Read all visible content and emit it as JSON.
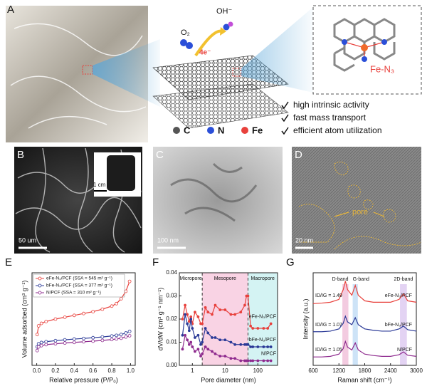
{
  "panel_a": {
    "label": "A",
    "o2": "O₂",
    "oh": "OH⁻",
    "electrons": "4e⁻",
    "site": "Fe-N₃",
    "features": [
      "high intrinsic activity",
      "fast mass transport",
      "efficient atom utilization"
    ],
    "elements": [
      "C",
      "N",
      "Fe"
    ]
  },
  "panel_b": {
    "label": "B",
    "scale": "50 um",
    "inset_scale": "1 cm"
  },
  "panel_c": {
    "label": "C",
    "scale": "100 nm"
  },
  "panel_d": {
    "label": "D",
    "scale": "20 nm",
    "annotation": "pore"
  },
  "chart_data": [
    {
      "type": "line",
      "label": "E",
      "x_label": "Relative pressure (P/P₀)",
      "y_label": "Volume adsorbed (cm³ g⁻¹)",
      "markers": "open",
      "legend": "upper left",
      "x": [
        0.005,
        0.02,
        0.05,
        0.1,
        0.2,
        0.3,
        0.4,
        0.5,
        0.6,
        0.7,
        0.8,
        0.85,
        0.9,
        0.95,
        0.99
      ],
      "xlim": [
        -0.05,
        1.05
      ],
      "xticks": [
        {
          "value": 0,
          "label": "0.0"
        },
        {
          "value": 0.2,
          "label": "0.2"
        },
        {
          "value": 0.4,
          "label": "0.4"
        },
        {
          "value": 0.6,
          "label": "0.6"
        },
        {
          "value": 0.8,
          "label": "0.8"
        },
        {
          "value": 1,
          "label": "1.0"
        }
      ],
      "ylim": [
        0,
        750
      ],
      "series": [
        {
          "name": "eFe-N₃/PCF (SSA = 545 m² g⁻¹)",
          "color": "#e8413c",
          "values": [
            250,
            320,
            340,
            355,
            375,
            390,
            405,
            420,
            435,
            455,
            480,
            500,
            540,
            600,
            680
          ]
        },
        {
          "name": "bFe-N₃/PCF (SSA = 377 m² g⁻¹)",
          "color": "#2b3a97",
          "values": [
            150,
            175,
            185,
            192,
            200,
            207,
            213,
            218,
            224,
            230,
            238,
            243,
            250,
            262,
            275
          ]
        },
        {
          "name": "N/PCF (SSA = 310 m² g⁻¹)",
          "color": "#8e2a8e",
          "values": [
            120,
            150,
            160,
            168,
            175,
            181,
            186,
            191,
            196,
            202,
            209,
            214,
            220,
            230,
            240
          ]
        }
      ]
    },
    {
      "type": "line",
      "label": "F",
      "x_label": "Pore diameter (nm)",
      "y_label": "dV/dW (cm³ g⁻¹ nm⁻¹)",
      "markers": "filled",
      "log_x": true,
      "x": [
        0.5,
        0.6,
        0.7,
        0.8,
        0.9,
        1.0,
        1.2,
        1.5,
        1.8,
        2.0,
        2.5,
        3,
        4,
        5,
        7,
        10,
        15,
        20,
        30,
        40,
        45,
        50,
        60,
        70,
        100,
        150,
        200,
        250
      ],
      "xlim": [
        0.4,
        400
      ],
      "xticks": [
        1,
        10,
        100
      ],
      "ylim": [
        0,
        0.04
      ],
      "yticks": [
        {
          "value": 0,
          "label": "0.00"
        },
        {
          "value": 0.01,
          "label": "0.01"
        },
        {
          "value": 0.02,
          "label": "0.02"
        },
        {
          "value": 0.03,
          "label": "0.03"
        },
        {
          "value": 0.04,
          "label": "0.04"
        }
      ],
      "regions": [
        {
          "label": "Micropore",
          "range": [
            0.4,
            2
          ],
          "color": "#ffffff"
        },
        {
          "label": "Mesopore",
          "range": [
            2,
            50
          ],
          "color": "#f9d3e4"
        },
        {
          "label": "Macropore",
          "range": [
            50,
            400
          ],
          "color": "#d4f3f3"
        }
      ],
      "series": [
        {
          "name": "eFe-N₃/PCF",
          "color": "#e8413c",
          "values": [
            0.02,
            0.026,
            0.022,
            0.019,
            0.021,
            0.018,
            0.023,
            0.021,
            0.018,
            0.018,
            0.025,
            0.023,
            0.022,
            0.026,
            0.024,
            0.024,
            0.022,
            0.022,
            0.023,
            0.026,
            0.03,
            0.03,
            0.017,
            0.016,
            0.016,
            0.016,
            0.016,
            0.018
          ]
        },
        {
          "name": "bFe-N₃/PCF",
          "color": "#2b3a97",
          "values": [
            0.013,
            0.022,
            0.018,
            0.015,
            0.02,
            0.016,
            0.012,
            0.013,
            0.009,
            0.01,
            0.016,
            0.014,
            0.012,
            0.012,
            0.011,
            0.011,
            0.01,
            0.009,
            0.009,
            0.009,
            0.009,
            0.009,
            0.008,
            0.008,
            0.008,
            0.008,
            0.008,
            0.008
          ]
        },
        {
          "name": "N/PCF",
          "color": "#8e2a8e",
          "values": [
            0.007,
            0.013,
            0.011,
            0.009,
            0.01,
            0.008,
            0.006,
            0.007,
            0.004,
            0.005,
            0.008,
            0.007,
            0.006,
            0.005,
            0.004,
            0.004,
            0.003,
            0.003,
            0.002,
            0.002,
            0.002,
            0.002,
            0.002,
            0.002,
            0.002,
            0.002,
            0.002,
            0.002
          ]
        }
      ]
    },
    {
      "type": "line",
      "label": "G",
      "x_label": "Raman shift (cm⁻¹)",
      "y_label": "Intensity (a.u.)",
      "markers": "none",
      "x": [
        600,
        800,
        1000,
        1200,
        1300,
        1350,
        1400,
        1500,
        1580,
        1650,
        1800,
        2000,
        2200,
        2400,
        2600,
        2700,
        2800,
        3000
      ],
      "xlim": [
        600,
        3000
      ],
      "xticks": [
        600,
        1200,
        1800,
        2400,
        3000
      ],
      "ylim": [
        0,
        3.3
      ],
      "bands": [
        {
          "label": "D-band",
          "range": [
            1280,
            1420
          ],
          "color": "#f3cbe0"
        },
        {
          "label": "G-band",
          "range": [
            1520,
            1640
          ],
          "color": "#cde3f7"
        },
        {
          "label": "2D-band",
          "range": [
            2620,
            2780
          ],
          "color": "#e3d3f3"
        }
      ],
      "series": [
        {
          "name": "eFe-N₃/PCF",
          "ratio": "ID/IG = 1.49",
          "color": "#e8413c",
          "values": [
            2.2,
            2.22,
            2.25,
            2.35,
            2.7,
            3.0,
            2.7,
            2.5,
            2.85,
            2.5,
            2.3,
            2.25,
            2.25,
            2.25,
            2.35,
            2.55,
            2.3,
            2.25
          ]
        },
        {
          "name": "bFe-N₃/PCF",
          "ratio": "ID/IG = 1.07",
          "color": "#2b3a97",
          "values": [
            1.2,
            1.2,
            1.22,
            1.3,
            1.5,
            1.75,
            1.55,
            1.45,
            1.7,
            1.45,
            1.3,
            1.25,
            1.22,
            1.22,
            1.3,
            1.4,
            1.27,
            1.22
          ]
        },
        {
          "name": "N/PCF",
          "ratio": "ID/IG = 1.05",
          "color": "#8e2a8e",
          "values": [
            0.3,
            0.3,
            0.32,
            0.4,
            0.6,
            0.85,
            0.65,
            0.55,
            0.8,
            0.55,
            0.4,
            0.35,
            0.32,
            0.32,
            0.38,
            0.48,
            0.36,
            0.32
          ]
        }
      ]
    }
  ]
}
